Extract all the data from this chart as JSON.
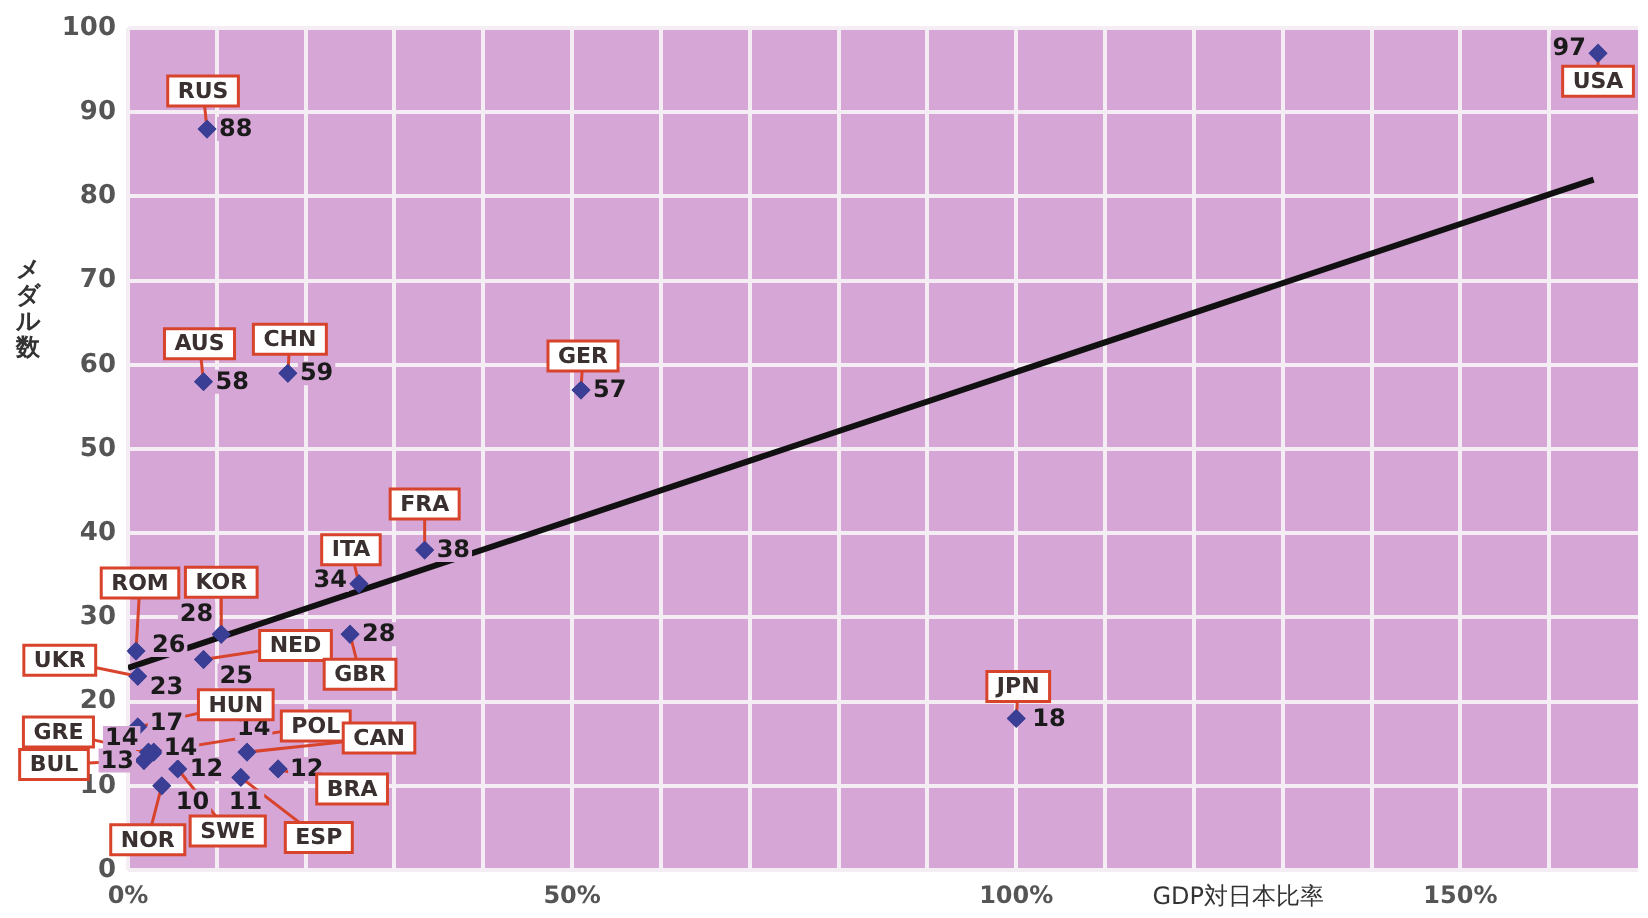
{
  "chart_data": {
    "type": "scatter",
    "xlabel": "GDP対日本比率",
    "ylabel": "メダル数",
    "xlim": [
      0,
      170
    ],
    "ylim": [
      0,
      100
    ],
    "xticks": [
      {
        "value": 0,
        "label": "0%"
      },
      {
        "value": 10,
        "label": null
      },
      {
        "value": 20,
        "label": null
      },
      {
        "value": 30,
        "label": null
      },
      {
        "value": 40,
        "label": null
      },
      {
        "value": 50,
        "label": "50%"
      },
      {
        "value": 60,
        "label": null
      },
      {
        "value": 70,
        "label": null
      },
      {
        "value": 80,
        "label": null
      },
      {
        "value": 90,
        "label": null
      },
      {
        "value": 100,
        "label": "100%"
      },
      {
        "value": 110,
        "label": null
      },
      {
        "value": 120,
        "label": null
      },
      {
        "value": 130,
        "label": null
      },
      {
        "value": 140,
        "label": null
      },
      {
        "value": 150,
        "label": "150%"
      },
      {
        "value": 160,
        "label": null
      }
    ],
    "yticks": [
      0,
      10,
      20,
      30,
      40,
      50,
      60,
      70,
      80,
      90,
      100
    ],
    "grid": true,
    "legend": false,
    "series": [
      {
        "color": "#3a3f95",
        "marker": "diamond",
        "x": [
          8.9,
          8.5,
          18,
          51,
          33.4,
          26,
          0.9,
          10.5,
          1.1,
          8.5,
          25,
          1.1,
          2.9,
          2.3,
          1.8,
          3.8,
          5.6,
          13.4,
          12.7,
          16.9,
          100,
          165.5
        ],
        "values": [
          88,
          58,
          59,
          57,
          38,
          34,
          26,
          28,
          23,
          25,
          28,
          17,
          14,
          14,
          13,
          10,
          12,
          14,
          11,
          12,
          18,
          97
        ],
        "value_labels": [
          "88",
          "58",
          "59",
          "57",
          "38",
          "34",
          "26",
          "28",
          "23",
          "25",
          "28",
          "17",
          "14",
          "14",
          "13",
          "10",
          "12",
          "14",
          "11",
          "12",
          "18",
          "97"
        ]
      },
      {
        "type": "line",
        "color": "#111111",
        "marker": "none",
        "x": [
          0,
          165
        ],
        "values": [
          24,
          82
        ]
      }
    ],
    "annotations": [
      {
        "text": "RUS",
        "x": 8.9,
        "y": 88
      },
      {
        "text": "AUS",
        "x": 8.5,
        "y": 58
      },
      {
        "text": "CHN",
        "x": 18,
        "y": 59
      },
      {
        "text": "GER",
        "x": 51,
        "y": 57
      },
      {
        "text": "FRA",
        "x": 33.4,
        "y": 38
      },
      {
        "text": "ITA",
        "x": 26,
        "y": 34
      },
      {
        "text": "ROM",
        "x": 0.9,
        "y": 26
      },
      {
        "text": "KOR",
        "x": 10.5,
        "y": 28
      },
      {
        "text": "UKR",
        "x": 1.1,
        "y": 23
      },
      {
        "text": "NED",
        "x": 8.5,
        "y": 25
      },
      {
        "text": "GBR",
        "x": 25,
        "y": 28
      },
      {
        "text": "HUN",
        "x": 1.1,
        "y": 17
      },
      {
        "text": "POL",
        "x": 2.9,
        "y": 14
      },
      {
        "text": "GRE",
        "x": 2.3,
        "y": 14
      },
      {
        "text": "BUL",
        "x": 1.8,
        "y": 13
      },
      {
        "text": "NOR",
        "x": 3.8,
        "y": 10
      },
      {
        "text": "SWE",
        "x": 5.6,
        "y": 12
      },
      {
        "text": "CAN",
        "x": 13.4,
        "y": 14
      },
      {
        "text": "ESP",
        "x": 12.7,
        "y": 11
      },
      {
        "text": "BRA",
        "x": 16.9,
        "y": 12
      },
      {
        "text": "JPN",
        "x": 100,
        "y": 18
      },
      {
        "text": "USA",
        "x": 165.5,
        "y": 97
      }
    ]
  }
}
